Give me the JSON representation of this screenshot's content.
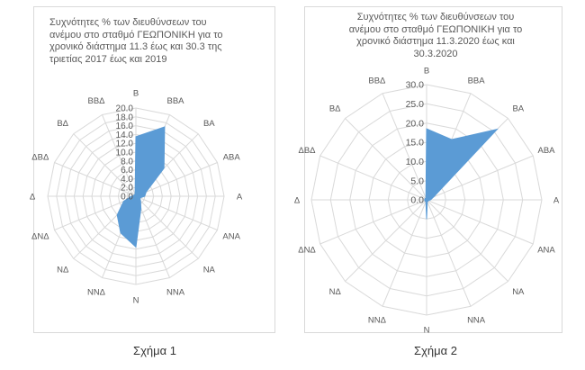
{
  "figures": [
    {
      "caption": "Σχήμα 1",
      "chart_data": {
        "type": "radar",
        "title": "Συχνότητες % των διευθύνσεων του ανέμου στο σταθμό ΓΕΩΠΟΝΙΚΗ για το χρονικό διάστημα 11.3 έως και 30.3 της τριετίας 2017 έως και 2019",
        "title_lines": [
          "Συχνότητες % των διευθύνσεων του",
          "ανέμου στο σταθμό ΓΕΩΠΟΝΙΚΗ για το",
          "χρονικό διάστημα 11.3 έως και 30.3 της",
          "τριετίας 2017 έως και 2019"
        ],
        "categories": [
          "Β",
          "ΒΒΑ",
          "ΒΑ",
          "ΑΒΑ",
          "Α",
          "ΑΝΑ",
          "ΝΑ",
          "ΝΝΑ",
          "Ν",
          "ΝΝΔ",
          "ΝΔ",
          "ΔΝΔ",
          "Δ",
          "ΔΒΔ",
          "ΒΔ",
          "ΒΒΔ"
        ],
        "values": [
          13.5,
          17.0,
          9.0,
          2.5,
          2.0,
          1.0,
          1.5,
          3.0,
          11.5,
          9.0,
          6.0,
          3.0,
          1.0,
          0.5,
          0.5,
          0.5
        ],
        "rlim": [
          0,
          20
        ],
        "r_ticks": [
          "0.0",
          "2.0",
          "4.0",
          "6.0",
          "8.0",
          "10.0",
          "12.0",
          "14.0",
          "16.0",
          "18.0",
          "20.0"
        ],
        "grid": true,
        "fill_color": "#5b9bd5"
      }
    },
    {
      "caption": "Σχήμα 2",
      "chart_data": {
        "type": "radar",
        "title": "Συχνότητες % των διευθύνσεων του ανέμου στο σταθμό ΓΕΩΠΟΝΙΚΗ για το χρονικό διάστημα 11.3.2020 έως και 30.3.2020",
        "title_lines": [
          "Συχνότητες % των διευθύνσεων του",
          "ανέμου στο σταθμό ΓΕΩΠΟΝΙΚΗ για το",
          "χρονικό διάστημα 11.3.2020 έως και",
          "30.3.2020"
        ],
        "categories": [
          "Β",
          "ΒΒΑ",
          "ΒΑ",
          "ΑΒΑ",
          "Α",
          "ΑΝΑ",
          "ΝΑ",
          "ΝΝΑ",
          "Ν",
          "ΝΝΔ",
          "ΝΔ",
          "ΔΝΔ",
          "Δ",
          "ΔΒΔ",
          "ΒΔ",
          "ΒΒΔ"
        ],
        "values": [
          18.5,
          17.0,
          26.0,
          2.0,
          1.0,
          0.5,
          0.5,
          0.5,
          5.0,
          0.5,
          0.5,
          0.5,
          0.5,
          0.5,
          0.5,
          0.5
        ],
        "rlim": [
          0,
          30
        ],
        "r_ticks": [
          "0.0",
          "5.0",
          "10.0",
          "15.0",
          "20.0",
          "25.0",
          "30.0"
        ],
        "grid": true,
        "fill_color": "#5b9bd5"
      }
    }
  ]
}
